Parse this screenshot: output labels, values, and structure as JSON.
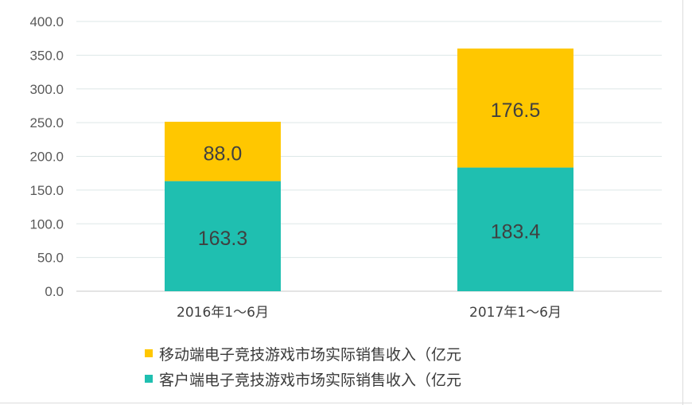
{
  "chart_data": {
    "type": "bar",
    "stacked": true,
    "categories": [
      "2016年1～6月",
      "2017年1～6月"
    ],
    "series": [
      {
        "name": "客户端电子竞技游戏市场实际销售收入（亿元",
        "color": "#1fbfb0",
        "values": [
          163.3,
          183.4
        ]
      },
      {
        "name": "移动端电子竞技游戏市场实际销售收入（亿元",
        "color": "#ffc700",
        "values": [
          88.0,
          176.5
        ]
      }
    ],
    "ylim": [
      0,
      400
    ],
    "yticks": [
      "0.0",
      "50.0",
      "100.0",
      "150.0",
      "200.0",
      "250.0",
      "300.0",
      "350.0",
      "400.0"
    ],
    "grid": true,
    "legend_position": "bottom",
    "title": "",
    "xlabel": "",
    "ylabel": ""
  },
  "legend": [
    {
      "label": "移动端电子竞技游戏市场实际销售收入（亿元",
      "color": "#ffc700"
    },
    {
      "label": "客户端电子竞技游戏市场实际销售收入（亿元",
      "color": "#1fbfb0"
    }
  ]
}
